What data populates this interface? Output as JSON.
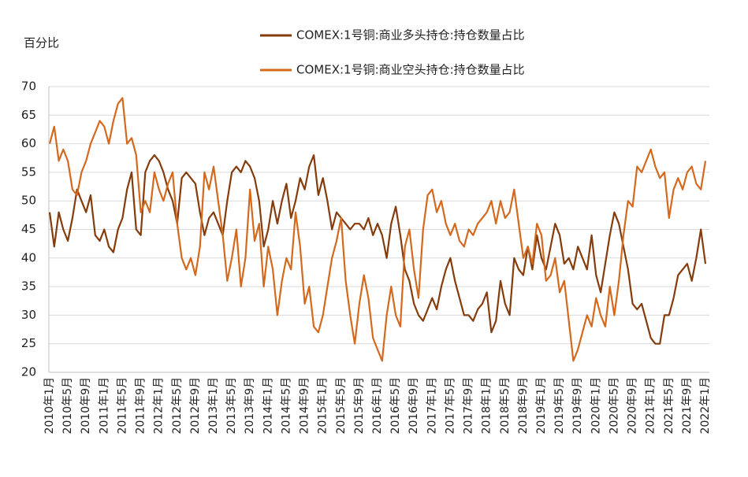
{
  "chart_data": {
    "type": "line",
    "ylabel": "百分比",
    "categories": [
      "2010年1月",
      null,
      null,
      null,
      "2010年5月",
      null,
      null,
      null,
      "2010年9月",
      null,
      null,
      null,
      "2011年1月",
      null,
      null,
      null,
      "2011年5月",
      null,
      null,
      null,
      "2011年9月",
      null,
      null,
      null,
      "2012年1月",
      null,
      null,
      null,
      "2012年5月",
      null,
      null,
      null,
      "2012年9月",
      null,
      null,
      null,
      "2013年1月",
      null,
      null,
      null,
      "2013年5月",
      null,
      null,
      null,
      "2013年9月",
      null,
      null,
      null,
      "2014年1月",
      null,
      null,
      null,
      "2014年5月",
      null,
      null,
      null,
      "2014年9月",
      null,
      null,
      null,
      "2015年1月",
      null,
      null,
      null,
      "2015年5月",
      null,
      null,
      null,
      "2015年9月",
      null,
      null,
      null,
      "2016年1月",
      null,
      null,
      null,
      "2016年5月",
      null,
      null,
      null,
      "2016年9月",
      null,
      null,
      null,
      "2017年1月",
      null,
      null,
      null,
      "2017年5月",
      null,
      null,
      null,
      "2017年9月",
      null,
      null,
      null,
      "2018年1月",
      null,
      null,
      null,
      "2018年5月",
      null,
      null,
      null,
      "2018年9月",
      null,
      null,
      null,
      "2019年1月",
      null,
      null,
      null,
      "2019年5月",
      null,
      null,
      null,
      "2019年9月",
      null,
      null,
      null,
      "2020年1月",
      null,
      null,
      null,
      "2020年5月",
      null,
      null,
      null,
      "2020年9月",
      null,
      null,
      null,
      "2021年1月",
      null,
      null,
      null,
      "2021年5月",
      null,
      null,
      null,
      "2021年9月",
      null,
      null,
      null,
      "2022年1月"
    ],
    "series": [
      {
        "name": "COMEX:1号铜:商业多头持仓:持仓数量占比",
        "color": "#843c0c",
        "values": [
          48,
          42,
          48,
          45,
          43,
          47,
          52,
          50,
          48,
          51,
          44,
          43,
          45,
          42,
          41,
          45,
          47,
          52,
          55,
          45,
          44,
          55,
          57,
          58,
          57,
          55,
          52,
          50,
          46,
          54,
          55,
          54,
          53,
          48,
          44,
          47,
          48,
          46,
          44,
          50,
          55,
          56,
          55,
          57,
          56,
          54,
          50,
          42,
          45,
          50,
          46,
          50,
          53,
          47,
          50,
          54,
          52,
          56,
          58,
          51,
          54,
          50,
          45,
          48,
          47,
          46,
          45,
          46,
          46,
          45,
          47,
          44,
          46,
          44,
          40,
          46,
          49,
          44,
          38,
          36,
          32,
          30,
          29,
          31,
          33,
          31,
          35,
          38,
          40,
          36,
          33,
          30,
          30,
          29,
          31,
          32,
          34,
          27,
          29,
          36,
          32,
          30,
          40,
          38,
          37,
          42,
          38,
          44,
          40,
          38,
          42,
          46,
          44,
          39,
          40,
          38,
          42,
          40,
          38,
          44,
          37,
          34,
          39,
          44,
          48,
          46,
          42,
          38,
          32,
          31,
          32,
          29,
          26,
          25,
          25,
          30,
          30,
          33,
          37,
          38,
          39,
          36,
          40,
          45,
          39
        ]
      },
      {
        "name": "COMEX:1号铜:商业空头持仓:持仓数量占比",
        "color": "#d4691e",
        "values": [
          60,
          63,
          57,
          59,
          57,
          52,
          51,
          55,
          57,
          60,
          62,
          64,
          63,
          60,
          64,
          67,
          68,
          60,
          61,
          58,
          48,
          50,
          48,
          55,
          52,
          50,
          53,
          55,
          46,
          40,
          38,
          40,
          37,
          42,
          55,
          52,
          56,
          50,
          44,
          36,
          40,
          45,
          35,
          40,
          52,
          43,
          46,
          35,
          42,
          38,
          30,
          36,
          40,
          38,
          48,
          42,
          32,
          35,
          28,
          27,
          30,
          35,
          40,
          43,
          47,
          36,
          30,
          25,
          32,
          37,
          33,
          26,
          24,
          22,
          30,
          35,
          30,
          28,
          42,
          45,
          38,
          33,
          45,
          51,
          52,
          48,
          50,
          46,
          44,
          46,
          43,
          42,
          45,
          44,
          46,
          47,
          48,
          50,
          46,
          50,
          47,
          48,
          52,
          46,
          40,
          42,
          39,
          46,
          44,
          36,
          37,
          40,
          34,
          36,
          29,
          22,
          24,
          27,
          30,
          28,
          33,
          30,
          28,
          35,
          30,
          36,
          44,
          50,
          49,
          56,
          55,
          57,
          59,
          56,
          54,
          55,
          47,
          52,
          54,
          52,
          55,
          56,
          53,
          52,
          57
        ]
      }
    ],
    "ylim": [
      20,
      70
    ],
    "yticks": [
      20,
      25,
      30,
      35,
      40,
      45,
      50,
      55,
      60,
      65,
      70
    ],
    "grid": true
  }
}
